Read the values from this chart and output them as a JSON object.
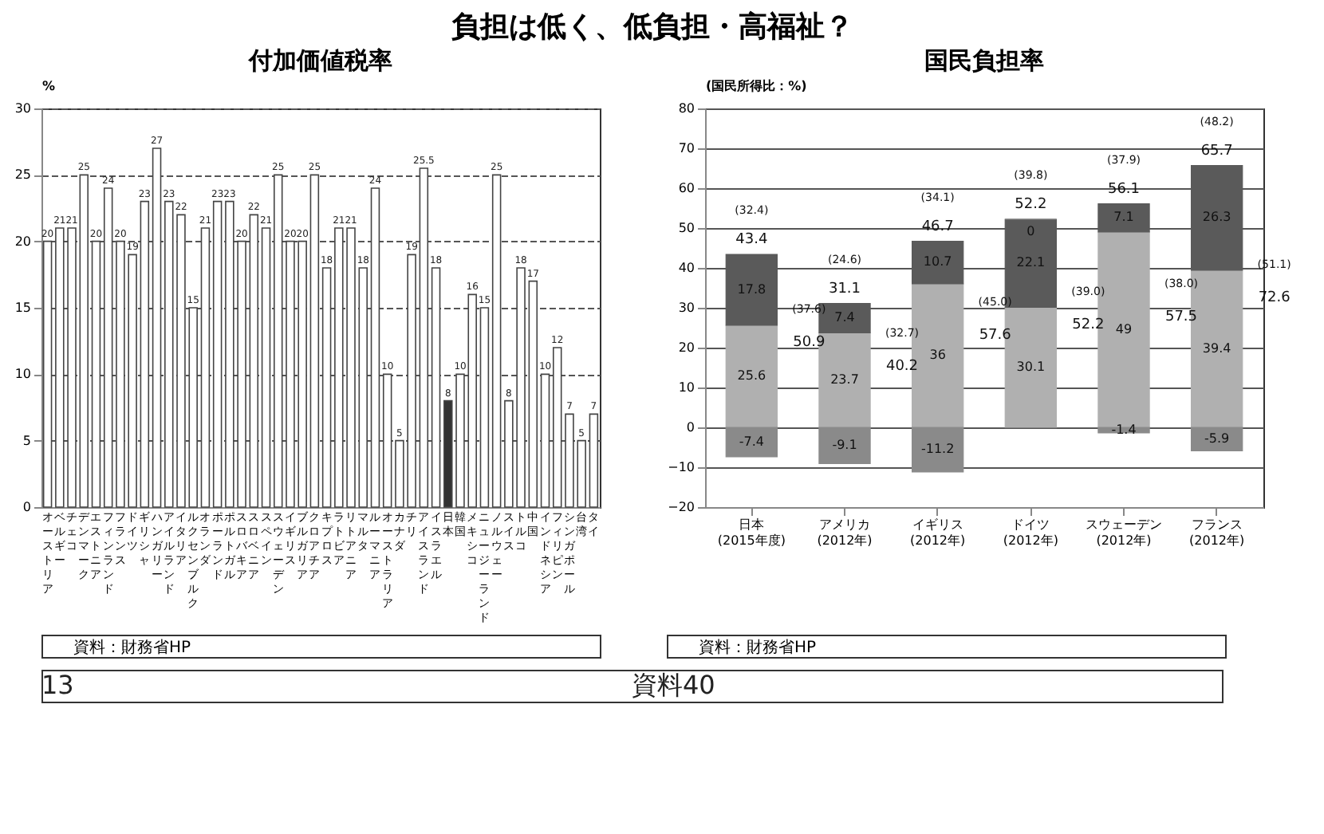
{
  "chart_data": [
    {
      "type": "other",
      "title": "負担は低く、低負担・高福祉？",
      "annotations": [
        "13",
        "資料40"
      ]
    },
    {
      "type": "bar",
      "title": "付加価値税率",
      "ylabel": "%",
      "categories": [
        "オーストリア",
        "ベルギー",
        "チェコ",
        "デンマーク",
        "エストニア",
        "フィンランド",
        "フランス",
        "ドイツ",
        "ギリシャ",
        "ハンガリー",
        "アイルランド",
        "イタリア",
        "ルクセンブルク",
        "オランダ",
        "ポーランド",
        "ポルトガル",
        "スロバキア",
        "スロベニア",
        "スペイン",
        "スウェーデン",
        "イギリス",
        "ブルガリア",
        "クロアチア",
        "キプロス",
        "ラトビア",
        "リトアニア",
        "マルタ",
        "ルーマニア",
        "オーストラリア",
        "カナダ",
        "チリ",
        "アイスランド",
        "イスラエル",
        "日本",
        "韓国",
        "メキシコ",
        "ニュージーランド",
        "ノルウェー",
        "スイス",
        "トルコ",
        "中国",
        "インドネシア",
        "フィリピン",
        "シンガポール",
        "台湾",
        "タイ"
      ],
      "values": [
        20,
        21,
        21,
        25,
        20,
        24,
        20,
        19,
        23,
        27,
        23,
        22,
        15,
        21,
        23,
        23,
        20,
        22,
        21,
        25,
        20,
        20,
        25,
        18,
        21,
        21,
        18,
        24,
        10,
        5,
        19,
        25.5,
        18,
        8,
        10,
        16,
        15,
        25,
        8,
        18,
        17,
        10,
        12,
        7,
        5,
        7
      ],
      "colors": [
        "#ffffff",
        "#ffffff",
        "#ffffff",
        "#ffffff",
        "#ffffff",
        "#ffffff",
        "#ffffff",
        "#ffffff",
        "#ffffff",
        "#ffffff",
        "#ffffff",
        "#ffffff",
        "#ffffff",
        "#ffffff",
        "#ffffff",
        "#ffffff",
        "#ffffff",
        "#ffffff",
        "#ffffff",
        "#ffffff",
        "#ffffff",
        "#ffffff",
        "#ffffff",
        "#ffffff",
        "#ffffff",
        "#ffffff",
        "#ffffff",
        "#ffffff",
        "#ffffff",
        "#ffffff",
        "#ffffff",
        "#ffffff",
        "#ffffff",
        "#333333",
        "#ffffff",
        "#ffffff",
        "#ffffff",
        "#ffffff",
        "#ffffff",
        "#ffffff",
        "#ffffff",
        "#ffffff",
        "#ffffff",
        "#ffffff",
        "#ffffff",
        "#ffffff"
      ],
      "ylim": [
        0,
        30
      ],
      "yticks": [
        0,
        5,
        10,
        15,
        20,
        25,
        30
      ],
      "grid": "y",
      "data_labels": true,
      "annotations": [
        "資料：財務省HP"
      ]
    },
    {
      "type": "bar",
      "title": "国民負担率",
      "ylabel": "(国民所得比：%)",
      "categories": [
        "日本 (2015年度)",
        "アメリカ (2012年)",
        "イギリス (2012年)",
        "ドイツ (2012年)",
        "スウェーデン (2012年)",
        "フランス (2012年)"
      ],
      "stacked": true,
      "series": [
        {
          "color": "#b0b0b0",
          "values": [
            25.6,
            23.7,
            36.0,
            30.1,
            49.0,
            39.4
          ]
        },
        {
          "color": "#5a5a5a",
          "values": [
            17.8,
            7.4,
            10.7,
            22.1,
            7.1,
            26.3
          ]
        },
        {
          "color": "#8a8a8a",
          "values": [
            -7.4,
            -9.1,
            -11.2,
            0.0,
            -1.4,
            -5.9
          ]
        }
      ],
      "ylim": [
        -20,
        80
      ],
      "yticks": [
        -20,
        -10,
        0,
        10,
        20,
        30,
        40,
        50,
        60,
        70,
        80
      ],
      "grid": "y",
      "data_labels": true,
      "annotations": [
        "43.4",
        "31.1",
        "46.7",
        "52.2",
        "56.1",
        "65.7",
        "(32.4)",
        "(24.6)",
        "(34.1)",
        "(39.8)",
        "(37.9)",
        "(48.2)",
        "50.9",
        "40.2",
        "57.6",
        "52.2",
        "57.5",
        "72.6",
        "(37.6)",
        "(32.7)",
        "(45.0)",
        "(39.0)",
        "(38.0)",
        "(51.1)",
        "資料：財務省HP"
      ]
    }
  ]
}
